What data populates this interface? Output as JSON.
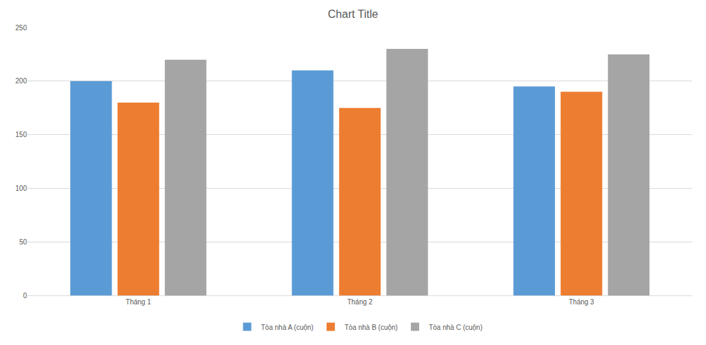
{
  "chart_data": {
    "type": "bar",
    "title": "Chart Title",
    "categories": [
      "Tháng 1",
      "Tháng 2",
      "Tháng 3"
    ],
    "series": [
      {
        "name": "Tòa nhà A (cuộn)",
        "color": "#5b9bd5",
        "values": [
          200,
          210,
          195
        ]
      },
      {
        "name": "Tòa nhà B (cuộn)",
        "color": "#ed7d31",
        "values": [
          180,
          175,
          190
        ]
      },
      {
        "name": "Tòa nhà C (cuộn)",
        "color": "#a5a5a5",
        "values": [
          220,
          230,
          225
        ]
      }
    ],
    "ylim": [
      0,
      250
    ],
    "yticks": [
      0,
      50,
      100,
      150,
      200,
      250
    ],
    "grid": true,
    "legend": "bottom"
  }
}
